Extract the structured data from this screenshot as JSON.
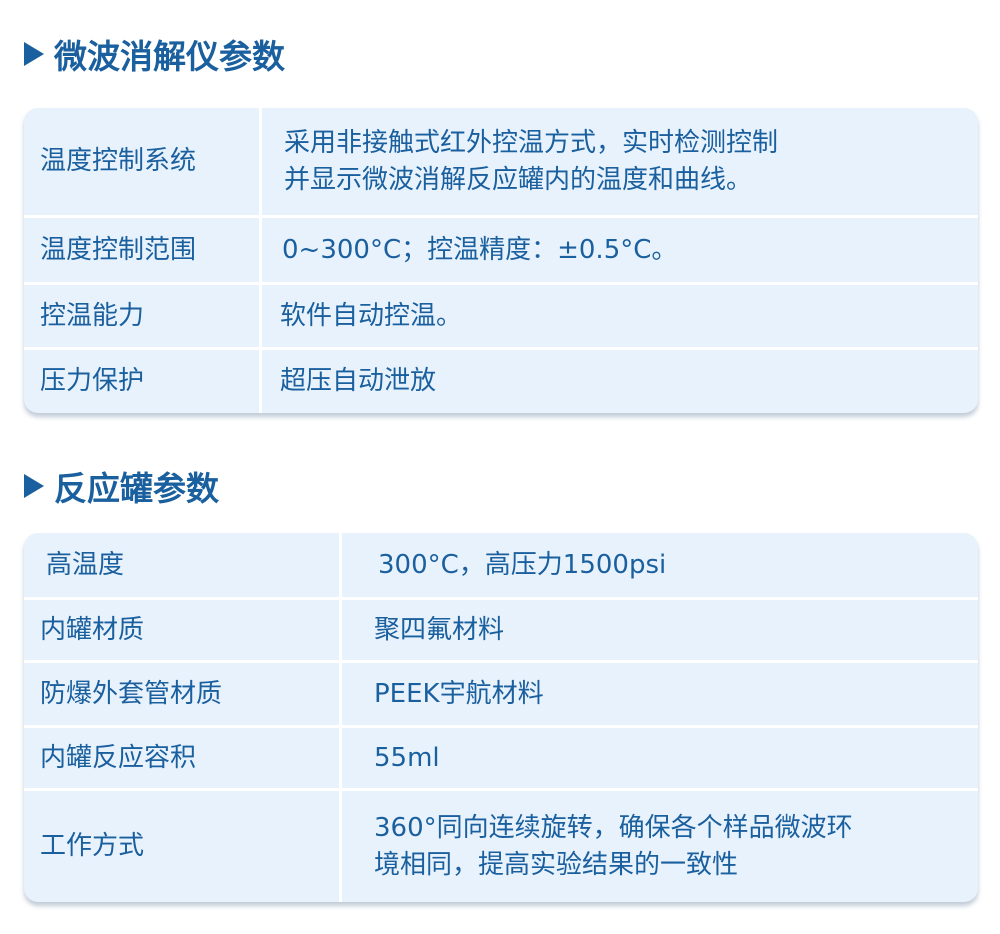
{
  "section1": {
    "title": "微波消解仪参数",
    "rows": [
      {
        "k": "温度控制系统",
        "v": "采用非接触式红外控温方式，实时检测控制\n并显示微波消解反应罐内的温度和曲线。"
      },
      {
        "k": "温度控制范围",
        "v": "0~300°C；控温精度：±0.5°C。"
      },
      {
        "k": "控温能力",
        "v": "软件自动控温。"
      },
      {
        "k": "压力保护",
        "v": "超压自动泄放"
      }
    ]
  },
  "section2": {
    "title": "反应罐参数",
    "rows": [
      {
        "k": "高温度",
        "v": "300°C，高压力1500psi"
      },
      {
        "k": "内罐材质",
        "v": "聚四氟材料"
      },
      {
        "k": "防爆外套管材质",
        "v": "PEEK宇航材料"
      },
      {
        "k": "内罐反应容积",
        "v": "55ml"
      },
      {
        "k": "工作方式",
        "v": "360°同向连续旋转，确保各个样品微波环\n境相同，提高实验结果的一致性"
      }
    ]
  },
  "colors": {
    "text": "#1a5f9e",
    "cell": "#e8f2fc"
  }
}
